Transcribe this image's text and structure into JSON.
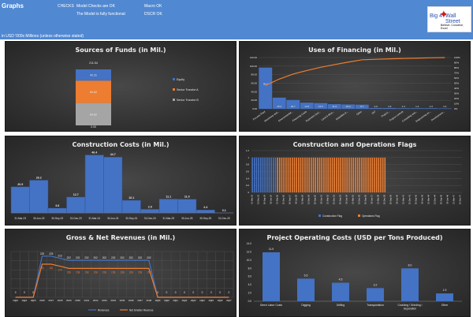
{
  "header": {
    "title": "Graphs",
    "checks_label": "CHECKS",
    "check1": "Model Checks are OK",
    "check2": "The Model is fully functional",
    "check3": "Macro OK",
    "check4": "DSCR OK",
    "units_note": "in USD '000s Millions (unless otherwise stated)",
    "logo": {
      "left": "Big 4",
      "right": "Wall Street",
      "tagline": "Believe, Conceive, Excel"
    }
  },
  "colors": {
    "header": "#5088d2",
    "blue": "#4472c4",
    "orange": "#ed7d31",
    "gray": "#a5a5a5"
  },
  "chart_data": [
    {
      "id": "sources",
      "type": "bar",
      "stacked": true,
      "title": "Sources of Funds (in Mil.)",
      "series": [
        {
          "name": "Equity",
          "values": [
            42.31
          ]
        },
        {
          "name": "Senior Tranche A",
          "values": [
            84.62
          ]
        },
        {
          "name": "Senior Tranche B",
          "values": [
            84.62
          ]
        }
      ],
      "total_label": "211.54",
      "base_label": "0.00",
      "legend": "right"
    },
    {
      "id": "uses",
      "type": "bar",
      "title": "Uses of Financing (in Mil.)",
      "categories": [
        "Process Plant",
        "Machinery and...",
        "Environmental...",
        "Financing Costs",
        "Expenses Duri...",
        "Land & Mine...",
        "Subsidies &...",
        "Other",
        "VAT",
        "Project...",
        "Project controls",
        "Consulting and...",
        "Engineering an...",
        "Development..."
      ],
      "values": [
        96.6,
        26.2,
        20.7,
        14.5,
        13.5,
        11.0,
        10.2,
        9.7,
        2.0,
        1.9,
        1.4,
        1.4,
        1.4,
        1.0
      ],
      "line": "cumulative percent (pareto)",
      "ylim": [
        0,
        120
      ],
      "yticks": [
        "0.00",
        "20.00",
        "40.00",
        "60.00",
        "80.00",
        "100.00",
        "120.00"
      ],
      "y2ticks": [
        "0%",
        "10%",
        "20%",
        "30%",
        "40%",
        "50%",
        "60%",
        "70%",
        "80%",
        "90%",
        "100%"
      ]
    },
    {
      "id": "construction",
      "type": "bar",
      "title": "Construction Costs (in Mil.)",
      "categories": [
        "31-Mar-23",
        "30-Jun-23",
        "30-Sep-23",
        "31-Dec-23",
        "31-Mar-24",
        "30-Jun-24",
        "30-Sep-24",
        "31-Dec-24",
        "31-Mar-25",
        "30-Jun-25",
        "30-Sep-25",
        "31-Dec-25"
      ],
      "values": [
        20.9,
        26.2,
        3.8,
        12.7,
        46.4,
        44.7,
        10.1,
        2.9,
        11.1,
        11.0,
        2.4,
        0.1
      ]
    },
    {
      "id": "flags",
      "type": "bar",
      "title": "Construction and Operations Flags",
      "yticks": [
        "0",
        "0.2",
        "0.4",
        "0.6",
        "0.8",
        "1",
        "1.2"
      ],
      "ylim": [
        0,
        1.2
      ],
      "first_period": "31-Mar-23",
      "last_period": "31-Dec-47",
      "series": [
        {
          "name": "Construction Flag",
          "active": [
            "31-Mar-23",
            "31-Dec-25"
          ]
        },
        {
          "name": "Operations Flag",
          "active": [
            "31-Mar-26",
            "31-Dec-38"
          ]
        }
      ],
      "legend": "bottom"
    },
    {
      "id": "revenues",
      "type": "line",
      "title": "Gross & Net Revenues (in Mil.)",
      "categories": [
        "2023",
        "2024",
        "2025",
        "2026",
        "2027",
        "2028",
        "2029",
        "2030",
        "2031",
        "2032",
        "2033",
        "2034",
        "2035",
        "2036",
        "2037",
        "2038",
        "2039",
        "2040",
        "2041",
        "2042",
        "2043",
        "2044",
        "2045",
        "2046",
        "2047"
      ],
      "series": [
        {
          "name": "Revenues",
          "values": [
            0,
            0,
            0,
            225,
            225,
            213,
            202,
            202,
            202,
            202,
            202,
            202,
            202,
            202,
            202,
            202,
            0,
            0,
            0,
            0,
            0,
            0,
            0,
            0,
            0
          ]
        },
        {
          "name": "Net Smelter Revenue",
          "values": [
            0,
            0,
            0,
            181,
            181,
            170,
            158,
            158,
            158,
            158,
            158,
            158,
            158,
            158,
            158,
            158,
            0,
            0,
            0,
            0,
            0,
            0,
            0,
            0,
            0
          ]
        }
      ],
      "ylim": [
        0,
        250
      ],
      "legend": "bottom"
    },
    {
      "id": "opcosts",
      "type": "bar",
      "title": "Project Operating Costs (USD per Tons Produced)",
      "categories": [
        "Direct Labor Costs",
        "Digging",
        "Drilling",
        "Transportation",
        "Crushing / Grinding / Separation",
        "Other"
      ],
      "values": [
        11.9,
        5.5,
        4.5,
        3.2,
        8.0,
        1.9
      ],
      "ylim": [
        0,
        14
      ],
      "yticks": [
        "0.0",
        "2.0",
        "4.0",
        "6.0",
        "8.0",
        "10.0",
        "12.0",
        "14.0"
      ]
    }
  ]
}
